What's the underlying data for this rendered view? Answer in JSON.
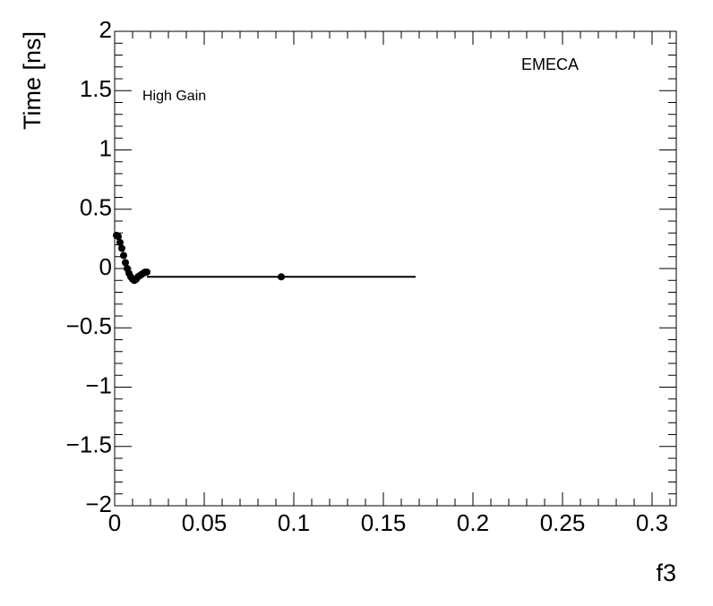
{
  "chart_data": {
    "type": "scatter",
    "x_label": "f3",
    "y_label": "Time [ns]",
    "annotations": [
      "High Gain",
      "EMECA"
    ],
    "series": [
      {
        "color": "#000000",
        "x": [
          0.001,
          0.002,
          0.003,
          0.004,
          0.005,
          0.006,
          0.007,
          0.008,
          0.009,
          0.01,
          0.011,
          0.012,
          0.013,
          0.014,
          0.015,
          0.016,
          0.017,
          0.018
        ],
        "y": [
          0.28,
          0.27,
          0.22,
          0.17,
          0.11,
          0.05,
          0.0,
          -0.04,
          -0.07,
          -0.09,
          -0.1,
          -0.09,
          -0.07,
          -0.06,
          -0.05,
          -0.04,
          -0.03,
          -0.03
        ]
      },
      {
        "color": "#000000",
        "x": [
          0.093
        ],
        "y": [
          -0.07
        ],
        "xerr": [
          0.075
        ]
      }
    ],
    "xlim": [
      0,
      0.3135
    ],
    "ylim": [
      -2,
      2
    ],
    "xticks": [
      0,
      0.05,
      0.1,
      0.15,
      0.2,
      0.25,
      0.3
    ],
    "yticks": [
      {
        "value": -2,
        "label": "−2"
      },
      {
        "value": -1.5,
        "label": "−1.5"
      },
      {
        "value": -1,
        "label": "−1"
      },
      {
        "value": -0.5,
        "label": "−0.5"
      },
      0,
      0.5,
      1,
      1.5,
      2
    ]
  }
}
